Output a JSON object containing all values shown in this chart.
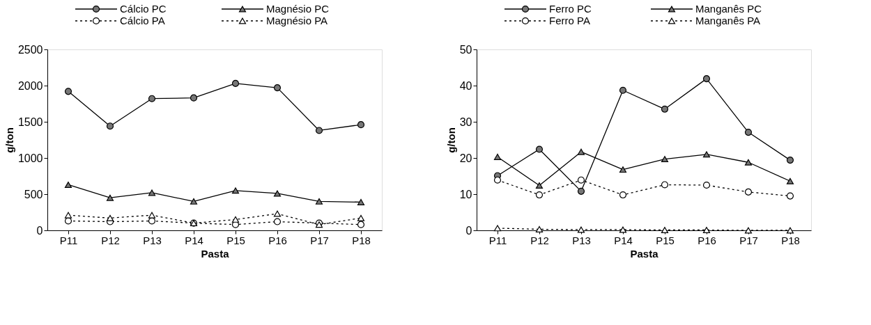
{
  "chart_data": [
    {
      "type": "line",
      "xlabel": "Pasta",
      "ylabel": "g/ton",
      "categories": [
        "P11",
        "P12",
        "P13",
        "P14",
        "P15",
        "P16",
        "P17",
        "P18"
      ],
      "ylim": [
        0,
        2500
      ],
      "yticks": [
        0,
        500,
        1000,
        1500,
        2000,
        2500
      ],
      "grid": false,
      "legend": "top",
      "series": [
        {
          "name": "Cálcio PC",
          "color": "#000000",
          "marker": "circle",
          "line_style": "solid",
          "values": [
            1920,
            1440,
            1820,
            1830,
            2030,
            1970,
            1380,
            1460
          ]
        },
        {
          "name": "Magnésio PC",
          "color": "#000000",
          "marker": "triangle",
          "line_style": "solid",
          "values": [
            630,
            450,
            520,
            400,
            550,
            510,
            400,
            390
          ]
        },
        {
          "name": "Cálcio PA",
          "color": "#000000",
          "marker": "circle",
          "line_style": "dashed",
          "values": [
            130,
            120,
            130,
            100,
            80,
            120,
            100,
            80
          ]
        },
        {
          "name": "Magnésio PA",
          "color": "#000000",
          "marker": "triangle",
          "line_style": "dashed",
          "values": [
            210,
            170,
            210,
            100,
            150,
            230,
            80,
            170
          ]
        }
      ]
    },
    {
      "type": "line",
      "xlabel": "Pasta",
      "ylabel": "g/ton",
      "categories": [
        "P11",
        "P12",
        "P13",
        "P14",
        "P15",
        "P16",
        "P17",
        "P18"
      ],
      "ylim": [
        0,
        50
      ],
      "yticks": [
        0,
        10,
        20,
        30,
        40,
        50
      ],
      "grid": false,
      "legend": "top",
      "series": [
        {
          "name": "Ferro PC",
          "color": "#000000",
          "marker": "circle",
          "line_style": "solid",
          "values": [
            15.1,
            22.4,
            10.8,
            38.7,
            33.5,
            41.9,
            27.1,
            19.4
          ]
        },
        {
          "name": "Manganês PC",
          "color": "#000000",
          "marker": "triangle",
          "line_style": "solid",
          "values": [
            20.3,
            12.4,
            21.7,
            16.8,
            19.7,
            21.0,
            18.8,
            13.6
          ]
        },
        {
          "name": "Ferro PA",
          "color": "#000000",
          "marker": "circle",
          "line_style": "dashed",
          "values": [
            13.9,
            9.8,
            13.9,
            9.8,
            12.6,
            12.5,
            10.6,
            9.5
          ]
        },
        {
          "name": "Manganês PA",
          "color": "#000000",
          "marker": "triangle",
          "line_style": "dashed",
          "values": [
            0.6,
            0.3,
            0.2,
            0.2,
            0.1,
            0.1,
            0.0,
            0.0
          ]
        }
      ]
    }
  ]
}
